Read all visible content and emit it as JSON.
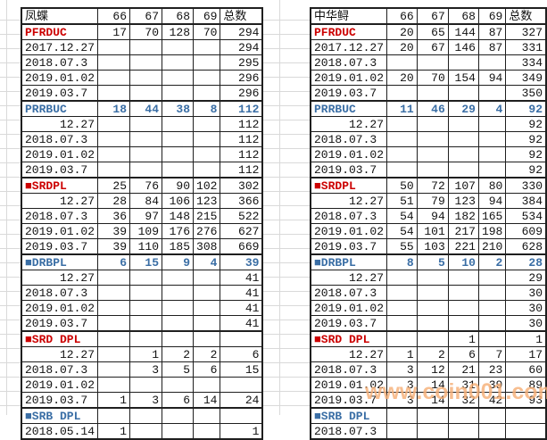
{
  "colors": {
    "section_red": "#cc0000",
    "section_blue": "#3a6ea5",
    "grid_line": "#d9d9d9",
    "table_border": "#1f1f1f",
    "watermark_orange": "#f6b078"
  },
  "watermark": {
    "text": "www.coin001.com"
  },
  "columns": [
    "66",
    "67",
    "68",
    "69",
    "总数"
  ],
  "tables": [
    {
      "title": "凤蝶",
      "rows": [
        {
          "label": "PFRDUC",
          "type": "red",
          "align": "left",
          "values": [
            "17",
            "70",
            "128",
            "70",
            "294"
          ]
        },
        {
          "label": "2017.12.27",
          "type": "date",
          "align": "left",
          "values": [
            "",
            "",
            "",
            "",
            "294"
          ]
        },
        {
          "label": "2018.07.3",
          "type": "date",
          "align": "left",
          "values": [
            "",
            "",
            "",
            "",
            "295"
          ]
        },
        {
          "label": "2019.01.02",
          "type": "date",
          "align": "left",
          "values": [
            "",
            "",
            "",
            "",
            "296"
          ]
        },
        {
          "label": "2019.03.7",
          "type": "date",
          "align": "left",
          "values": [
            "",
            "",
            "",
            "",
            "296"
          ]
        },
        {
          "label": "PRRBUC",
          "type": "blue",
          "align": "left",
          "values": [
            "18",
            "44",
            "38",
            "8",
            "112"
          ]
        },
        {
          "label": "12.27",
          "type": "date",
          "align": "right",
          "values": [
            "",
            "",
            "",
            "",
            "112"
          ]
        },
        {
          "label": "2018.07.3",
          "type": "date",
          "align": "left",
          "values": [
            "",
            "",
            "",
            "",
            "112"
          ]
        },
        {
          "label": "2019.01.02",
          "type": "date",
          "align": "left",
          "values": [
            "",
            "",
            "",
            "",
            "112"
          ]
        },
        {
          "label": "2019.03.7",
          "type": "date",
          "align": "left",
          "values": [
            "",
            "",
            "",
            "",
            "112"
          ]
        },
        {
          "label": "■SRDPL",
          "type": "red",
          "align": "left",
          "values": [
            "25",
            "76",
            "90",
            "102",
            "302"
          ]
        },
        {
          "label": "12.27",
          "type": "date",
          "align": "right",
          "values": [
            "28",
            "84",
            "106",
            "123",
            "366"
          ]
        },
        {
          "label": "2018.07.3",
          "type": "date",
          "align": "left",
          "values": [
            "36",
            "97",
            "148",
            "215",
            "522"
          ]
        },
        {
          "label": "2019.01.02",
          "type": "date",
          "align": "left",
          "values": [
            "39",
            "109",
            "176",
            "276",
            "627"
          ]
        },
        {
          "label": "2019.03.7",
          "type": "date",
          "align": "left",
          "values": [
            "39",
            "110",
            "185",
            "308",
            "669"
          ]
        },
        {
          "label": "■DRBPL",
          "type": "blue",
          "align": "left",
          "values": [
            "6",
            "15",
            "9",
            "4",
            "39"
          ]
        },
        {
          "label": "12.27",
          "type": "date",
          "align": "right",
          "values": [
            "",
            "",
            "",
            "",
            "41"
          ]
        },
        {
          "label": "2018.07.3",
          "type": "date",
          "align": "left",
          "values": [
            "",
            "",
            "",
            "",
            "41"
          ]
        },
        {
          "label": "2019.01.02",
          "type": "date",
          "align": "left",
          "values": [
            "",
            "",
            "",
            "",
            "41"
          ]
        },
        {
          "label": "2019.03.7",
          "type": "date",
          "align": "left",
          "values": [
            "",
            "",
            "",
            "",
            "41"
          ]
        },
        {
          "label": "■SRD DPL",
          "type": "red",
          "align": "left",
          "values": [
            "",
            "",
            "",
            "",
            ""
          ]
        },
        {
          "label": "12.27",
          "type": "date",
          "align": "right",
          "values": [
            "",
            "1",
            "2",
            "2",
            "6"
          ]
        },
        {
          "label": "2018.07.3",
          "type": "date",
          "align": "left",
          "values": [
            "",
            "3",
            "5",
            "6",
            "15"
          ]
        },
        {
          "label": "2019.01.02",
          "type": "date",
          "align": "left",
          "values": [
            "",
            "",
            "",
            "",
            ""
          ]
        },
        {
          "label": "2019.03.7",
          "type": "date",
          "align": "left",
          "values": [
            "1",
            "3",
            "6",
            "14",
            "24"
          ]
        },
        {
          "label": "■SRB DPL",
          "type": "blue",
          "align": "left",
          "values": [
            "",
            "",
            "",
            "",
            ""
          ]
        },
        {
          "label": "2018.05.14",
          "type": "date",
          "align": "left",
          "values": [
            "1",
            "",
            "",
            "",
            "1"
          ]
        }
      ]
    },
    {
      "title": "中华鲟",
      "rows": [
        {
          "label": "PFRDUC",
          "type": "red",
          "align": "left",
          "values": [
            "20",
            "65",
            "144",
            "87",
            "327"
          ]
        },
        {
          "label": "2017.12.27",
          "type": "date",
          "align": "left",
          "values": [
            "20",
            "67",
            "146",
            "87",
            "331"
          ]
        },
        {
          "label": "2018.07.3",
          "type": "date",
          "align": "left",
          "values": [
            "",
            "",
            "",
            "",
            "334"
          ]
        },
        {
          "label": "2019.01.02",
          "type": "date",
          "align": "left",
          "values": [
            "20",
            "70",
            "154",
            "94",
            "349"
          ]
        },
        {
          "label": "2019.03.7",
          "type": "date",
          "align": "left",
          "values": [
            "",
            "",
            "",
            "",
            "350"
          ]
        },
        {
          "label": "PRRBUC",
          "type": "blue",
          "align": "left",
          "values": [
            "11",
            "46",
            "29",
            "4",
            "92"
          ]
        },
        {
          "label": "12.27",
          "type": "date",
          "align": "right",
          "values": [
            "",
            "",
            "",
            "",
            "92"
          ]
        },
        {
          "label": "2018.07.3",
          "type": "date",
          "align": "left",
          "values": [
            "",
            "",
            "",
            "",
            "92"
          ]
        },
        {
          "label": "2019.01.02",
          "type": "date",
          "align": "left",
          "values": [
            "",
            "",
            "",
            "",
            "92"
          ]
        },
        {
          "label": "2019.03.7",
          "type": "date",
          "align": "left",
          "values": [
            "",
            "",
            "",
            "",
            "92"
          ]
        },
        {
          "label": "■SRDPL",
          "type": "red",
          "align": "left",
          "values": [
            "50",
            "72",
            "107",
            "80",
            "330"
          ]
        },
        {
          "label": "12.27",
          "type": "date",
          "align": "right",
          "values": [
            "51",
            "79",
            "123",
            "94",
            "384"
          ]
        },
        {
          "label": "2018.07.3",
          "type": "date",
          "align": "left",
          "values": [
            "54",
            "94",
            "182",
            "165",
            "534"
          ]
        },
        {
          "label": "2019.01.02",
          "type": "date",
          "align": "left",
          "values": [
            "54",
            "101",
            "217",
            "198",
            "609"
          ]
        },
        {
          "label": "2019.03.7",
          "type": "date",
          "align": "left",
          "values": [
            "55",
            "103",
            "221",
            "210",
            "628"
          ]
        },
        {
          "label": "■DRBPL",
          "type": "blue",
          "align": "left",
          "values": [
            "8",
            "5",
            "10",
            "2",
            "28"
          ]
        },
        {
          "label": "12.27",
          "type": "date",
          "align": "right",
          "values": [
            "",
            "",
            "",
            "",
            "29"
          ]
        },
        {
          "label": "2018.07.3",
          "type": "date",
          "align": "left",
          "values": [
            "",
            "",
            "",
            "",
            "30"
          ]
        },
        {
          "label": "2019.01.02",
          "type": "date",
          "align": "left",
          "values": [
            "",
            "",
            "",
            "",
            "30"
          ]
        },
        {
          "label": "2019.03.7",
          "type": "date",
          "align": "left",
          "values": [
            "",
            "",
            "",
            "",
            "30"
          ]
        },
        {
          "label": "■SRD DPL",
          "type": "red",
          "align": "left",
          "values": [
            "",
            "",
            "1",
            "",
            "1"
          ]
        },
        {
          "label": "12.27",
          "type": "date",
          "align": "right",
          "values": [
            "1",
            "2",
            "6",
            "7",
            "17"
          ]
        },
        {
          "label": "2018.07.3",
          "type": "date",
          "align": "left",
          "values": [
            "3",
            "12",
            "21",
            "23",
            "60"
          ]
        },
        {
          "label": "2019.01.02",
          "type": "date",
          "align": "left",
          "values": [
            "3",
            "14",
            "31",
            "39",
            "89"
          ]
        },
        {
          "label": "2019.03.7",
          "type": "date",
          "align": "left",
          "values": [
            "3",
            "14",
            "32",
            "42",
            "93"
          ]
        },
        {
          "label": "■SRB DPL",
          "type": "blue",
          "align": "left",
          "values": [
            "",
            "",
            "",
            "",
            ""
          ]
        },
        {
          "label": "2018.07.3",
          "type": "date",
          "align": "left",
          "values": [
            "",
            "",
            "",
            "",
            ""
          ]
        }
      ]
    }
  ]
}
